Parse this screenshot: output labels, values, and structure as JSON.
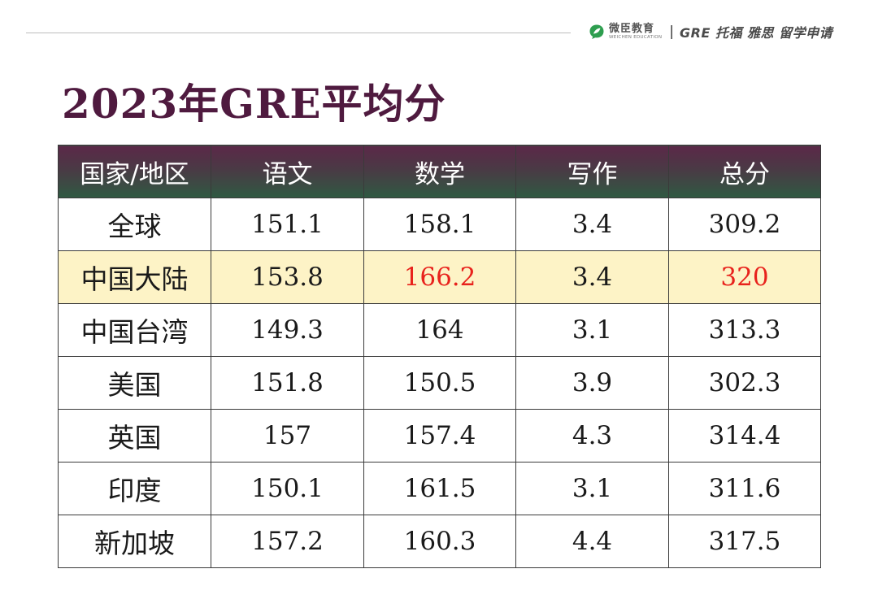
{
  "brand": {
    "name": "微臣教育",
    "subname": "WEICHEN EDUCATION",
    "separator": "|",
    "tagline": "GRE 托福 雅思 留学申请",
    "logo_icon": "leaf-speech-bubble-icon",
    "logo_color": "#2e9e4f"
  },
  "title": "2023年GRE平均分",
  "colors": {
    "title": "#4f1a3f",
    "header_gradient_top": "#5b2848",
    "header_gradient_bottom": "#2f5a42",
    "highlight_row": "#fdf3c6",
    "highlight_text": "#e8221c"
  },
  "table": {
    "headers": [
      "国家/地区",
      "语文",
      "数学",
      "写作",
      "总分"
    ],
    "rows": [
      {
        "region": "全球",
        "verbal": "151.1",
        "quant": "158.1",
        "writing": "3.4",
        "total": "309.2"
      },
      {
        "region": "中国大陆",
        "verbal": "153.8",
        "quant": "166.2",
        "writing": "3.4",
        "total": "320"
      },
      {
        "region": "中国台湾",
        "verbal": "149.3",
        "quant": "164",
        "writing": "3.1",
        "total": "313.3"
      },
      {
        "region": "美国",
        "verbal": "151.8",
        "quant": "150.5",
        "writing": "3.9",
        "total": "302.3"
      },
      {
        "region": "英国",
        "verbal": "157",
        "quant": "157.4",
        "writing": "4.3",
        "total": "314.4"
      },
      {
        "region": "印度",
        "verbal": "150.1",
        "quant": "161.5",
        "writing": "3.1",
        "total": "311.6"
      },
      {
        "region": "新加坡",
        "verbal": "157.2",
        "quant": "160.3",
        "writing": "4.4",
        "total": "317.5"
      }
    ]
  }
}
